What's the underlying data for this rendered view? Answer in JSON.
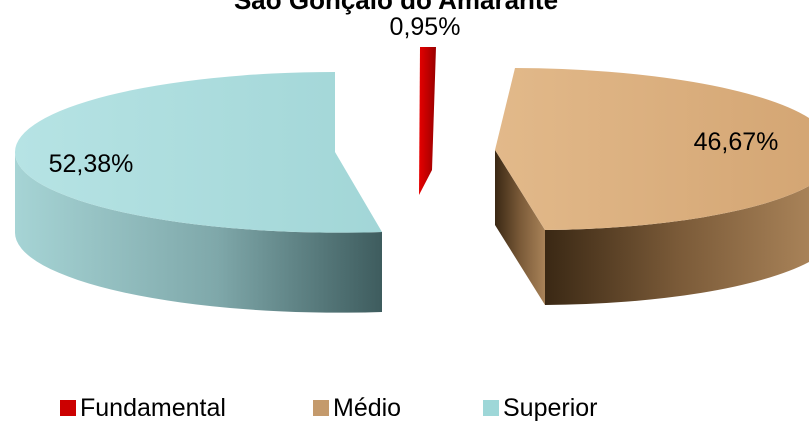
{
  "chart_data": {
    "type": "pie",
    "title": "São Gonçalo do Amarante",
    "categories": [
      "Fundamental",
      "Médio",
      "Superior"
    ],
    "values": [
      0.95,
      46.67,
      52.38
    ],
    "labels": [
      "0,95%",
      "46,67%",
      "52,38%"
    ],
    "colors": {
      "Fundamental": "#cc0000",
      "Médio": "#c49a6c",
      "Superior": "#9ed7d8"
    },
    "exploded": true,
    "three_d": true,
    "legend_position": "bottom"
  }
}
